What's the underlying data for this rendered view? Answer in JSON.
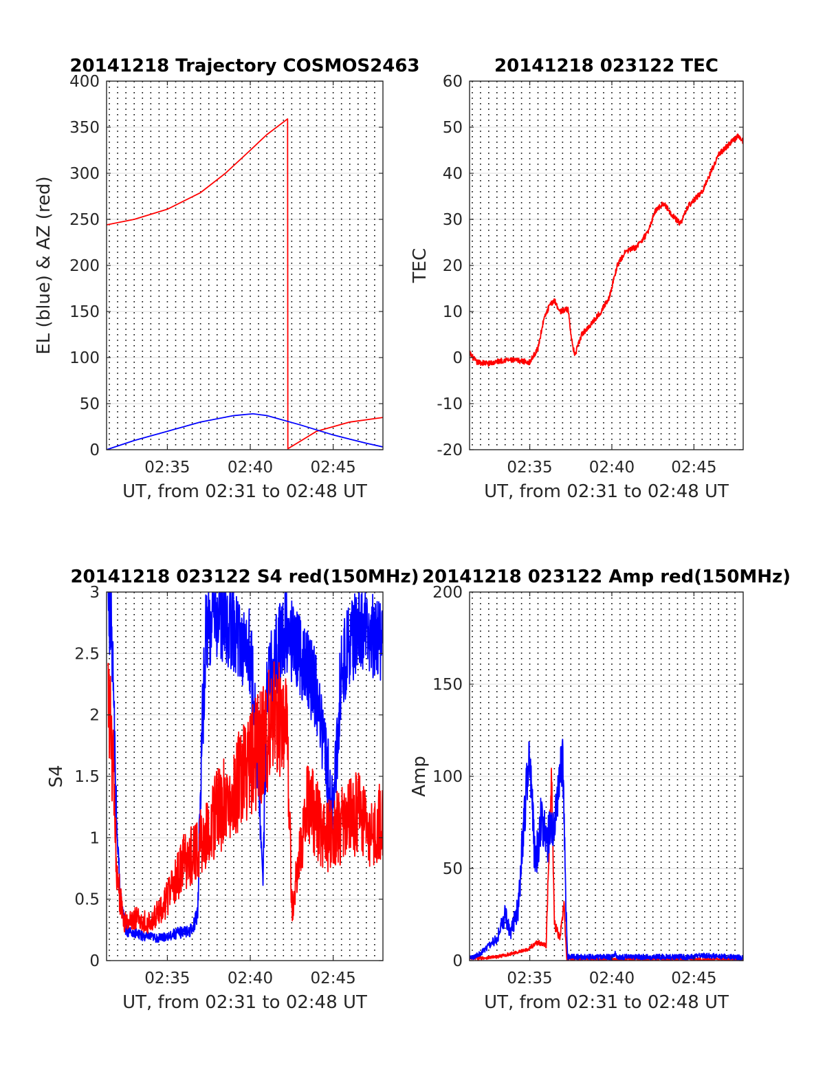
{
  "colors": {
    "el": "#0000ff",
    "az": "#ff0000",
    "background": "#ffffff",
    "grid": "#000000"
  },
  "chart_data": [
    {
      "id": "trajectory",
      "type": "line",
      "title": "20141218 Trajectory COSMOS2463",
      "xlabel": "UT, from 02:31 to 02:48 UT",
      "ylabel": "EL (blue) & AZ (red)",
      "xlim": [
        "02:31:20",
        "02:48:00"
      ],
      "ylim": [
        0,
        400
      ],
      "yticks": [
        "0",
        "50",
        "100",
        "150",
        "200",
        "250",
        "300",
        "350",
        "400"
      ],
      "xticks": [
        "02:35",
        "02:40",
        "02:45"
      ],
      "grid": "dotted vertical every 30 s, solid horizontal at y ticks",
      "series": [
        {
          "color": "#ff0000",
          "kind": "smooth",
          "points": [
            [
              "02:31:20",
              244
            ],
            [
              "02:33:00",
              250
            ],
            [
              "02:35:00",
              261
            ],
            [
              "02:37:00",
              279
            ],
            [
              "02:38:30",
              300
            ],
            [
              "02:40:00",
              325
            ],
            [
              "02:41:00",
              342
            ],
            [
              "02:42:15",
              359
            ],
            [
              "02:42:16",
              1
            ],
            [
              "02:44:00",
              20
            ],
            [
              "02:46:00",
              30
            ],
            [
              "02:48:00",
              35
            ]
          ]
        },
        {
          "color": "#0000ff",
          "kind": "smooth",
          "points": [
            [
              "02:31:20",
              0
            ],
            [
              "02:33:00",
              10
            ],
            [
              "02:35:00",
              20
            ],
            [
              "02:37:00",
              30
            ],
            [
              "02:39:00",
              37
            ],
            [
              "02:40:10",
              39
            ],
            [
              "02:41:00",
              37
            ],
            [
              "02:43:00",
              27
            ],
            [
              "02:45:00",
              16
            ],
            [
              "02:47:00",
              7
            ],
            [
              "02:48:00",
              3
            ]
          ]
        }
      ]
    },
    {
      "id": "tec",
      "type": "line",
      "title": "20141218 023122 TEC",
      "xlabel": "UT, from 02:31 to 02:48 UT",
      "ylabel": "TEC",
      "xlim": [
        "02:31:20",
        "02:48:00"
      ],
      "ylim": [
        -20,
        60
      ],
      "yticks": [
        "-20",
        "-10",
        "0",
        "10",
        "20",
        "30",
        "40",
        "50",
        "60"
      ],
      "xticks": [
        "02:35",
        "02:40",
        "02:45"
      ],
      "series": [
        {
          "color": "#ff0000",
          "kind": "noisy",
          "noise": 0.6,
          "points": [
            [
              "02:31:20",
              1
            ],
            [
              "02:31:45",
              -1
            ],
            [
              "02:32:30",
              -1.3
            ],
            [
              "02:33:30",
              -0.5
            ],
            [
              "02:34:20",
              -0.7
            ],
            [
              "02:35:00",
              -1
            ],
            [
              "02:35:30",
              2
            ],
            [
              "02:35:50",
              8
            ],
            [
              "02:36:10",
              11
            ],
            [
              "02:36:30",
              12.5
            ],
            [
              "02:36:50",
              10
            ],
            [
              "02:37:20",
              10.5
            ],
            [
              "02:37:35",
              3
            ],
            [
              "02:37:45",
              0.5
            ],
            [
              "02:38:10",
              5
            ],
            [
              "02:38:40",
              7
            ],
            [
              "02:39:20",
              10
            ],
            [
              "02:39:50",
              13
            ],
            [
              "02:40:20",
              20
            ],
            [
              "02:40:50",
              23
            ],
            [
              "02:41:30",
              24
            ],
            [
              "02:42:10",
              27
            ],
            [
              "02:42:40",
              32
            ],
            [
              "02:43:10",
              33.5
            ],
            [
              "02:43:40",
              31
            ],
            [
              "02:44:10",
              29
            ],
            [
              "02:44:40",
              33
            ],
            [
              "02:45:30",
              36
            ],
            [
              "02:46:00",
              40
            ],
            [
              "02:46:30",
              44
            ],
            [
              "02:47:20",
              47
            ],
            [
              "02:47:40",
              48
            ],
            [
              "02:48:00",
              47
            ]
          ]
        }
      ]
    },
    {
      "id": "s4",
      "type": "line",
      "title": "20141218 023122 S4 red(150MHz)",
      "xlabel": "UT, from 02:31 to 02:48 UT",
      "ylabel": "S4",
      "xlim": [
        "02:31:20",
        "02:48:00"
      ],
      "ylim": [
        0,
        3
      ],
      "yticks": [
        "0",
        "0.5",
        "1",
        "1.5",
        "2",
        "2.5",
        "3"
      ],
      "xticks": [
        "02:35",
        "02:40",
        "02:45"
      ],
      "series": [
        {
          "color": "#0000ff",
          "kind": "noisy",
          "noise": 0.25,
          "points": [
            [
              "02:31:25",
              3
            ],
            [
              "02:31:40",
              2.6
            ],
            [
              "02:31:55",
              1.2
            ],
            [
              "02:32:10",
              0.5
            ],
            [
              "02:32:30",
              0.25
            ],
            [
              "02:33:30",
              0.2
            ],
            [
              "02:34:30",
              0.18
            ],
            [
              "02:35:30",
              0.22
            ],
            [
              "02:36:30",
              0.25
            ],
            [
              "02:36:50",
              0.4
            ],
            [
              "02:37:00",
              1.5
            ],
            [
              "02:37:20",
              2.7
            ],
            [
              "02:38:00",
              2.8
            ],
            [
              "02:39:00",
              2.7
            ],
            [
              "02:40:00",
              2.5
            ],
            [
              "02:40:30",
              1.6
            ],
            [
              "02:40:45",
              0.6
            ],
            [
              "02:41:00",
              2.2
            ],
            [
              "02:42:00",
              2.7
            ],
            [
              "02:43:00",
              2.5
            ],
            [
              "02:44:00",
              2.2
            ],
            [
              "02:45:00",
              1.2
            ],
            [
              "02:45:30",
              2.4
            ],
            [
              "02:46:30",
              2.7
            ],
            [
              "02:48:00",
              2.6
            ]
          ]
        },
        {
          "color": "#ff0000",
          "kind": "noisy",
          "noise": 0.35,
          "points": [
            [
              "02:31:25",
              2.2
            ],
            [
              "02:31:40",
              1.7
            ],
            [
              "02:31:55",
              0.8
            ],
            [
              "02:32:20",
              0.3
            ],
            [
              "02:33:00",
              0.35
            ],
            [
              "02:34:00",
              0.3
            ],
            [
              "02:35:00",
              0.5
            ],
            [
              "02:36:00",
              0.8
            ],
            [
              "02:36:50",
              0.9
            ],
            [
              "02:37:30",
              1.1
            ],
            [
              "02:38:30",
              1.3
            ],
            [
              "02:39:30",
              1.5
            ],
            [
              "02:40:30",
              1.7
            ],
            [
              "02:41:30",
              2.0
            ],
            [
              "02:42:15",
              1.9
            ],
            [
              "02:42:30",
              0.4
            ],
            [
              "02:43:30",
              1.3
            ],
            [
              "02:44:30",
              1.0
            ],
            [
              "02:45:30",
              1.1
            ],
            [
              "02:46:30",
              1.2
            ],
            [
              "02:47:30",
              1.0
            ],
            [
              "02:48:00",
              1.2
            ]
          ]
        }
      ]
    },
    {
      "id": "amp",
      "type": "line",
      "title": "20141218 023122 Amp red(150MHz)",
      "xlabel": "UT, from 02:31 to 02:48 UT",
      "ylabel": "Amp",
      "xlim": [
        "02:31:20",
        "02:48:00"
      ],
      "ylim": [
        0,
        200
      ],
      "yticks": [
        "0",
        "50",
        "100",
        "150",
        "200"
      ],
      "xticks": [
        "02:35",
        "02:40",
        "02:45"
      ],
      "series": [
        {
          "color": "#ff0000",
          "kind": "noisy",
          "noise": 6,
          "points": [
            [
              "02:31:20",
              1
            ],
            [
              "02:33:00",
              2
            ],
            [
              "02:34:00",
              4
            ],
            [
              "02:34:50",
              6
            ],
            [
              "02:35:30",
              10
            ],
            [
              "02:36:00",
              8
            ],
            [
              "02:36:10",
              60
            ],
            [
              "02:36:20",
              100
            ],
            [
              "02:36:30",
              20
            ],
            [
              "02:36:50",
              12
            ],
            [
              "02:37:05",
              30
            ],
            [
              "02:37:15",
              1
            ],
            [
              "02:48:00",
              0.5
            ]
          ]
        },
        {
          "color": "#0000ff",
          "kind": "noisy",
          "noise": 10,
          "points": [
            [
              "02:31:20",
              1
            ],
            [
              "02:32:00",
              4
            ],
            [
              "02:32:30",
              8
            ],
            [
              "02:33:00",
              12
            ],
            [
              "02:33:30",
              25
            ],
            [
              "02:33:50",
              15
            ],
            [
              "02:34:20",
              30
            ],
            [
              "02:34:40",
              80
            ],
            [
              "02:35:00",
              110
            ],
            [
              "02:35:20",
              50
            ],
            [
              "02:35:40",
              75
            ],
            [
              "02:36:00",
              65
            ],
            [
              "02:36:20",
              70
            ],
            [
              "02:36:40",
              90
            ],
            [
              "02:37:00",
              110
            ],
            [
              "02:37:10",
              40
            ],
            [
              "02:37:18",
              2
            ],
            [
              "02:40:00",
              2
            ],
            [
              "02:40:10",
              4
            ],
            [
              "02:40:20",
              2
            ],
            [
              "02:45:00",
              2
            ],
            [
              "02:45:15",
              3
            ],
            [
              "02:48:00",
              1.5
            ]
          ]
        }
      ]
    }
  ]
}
